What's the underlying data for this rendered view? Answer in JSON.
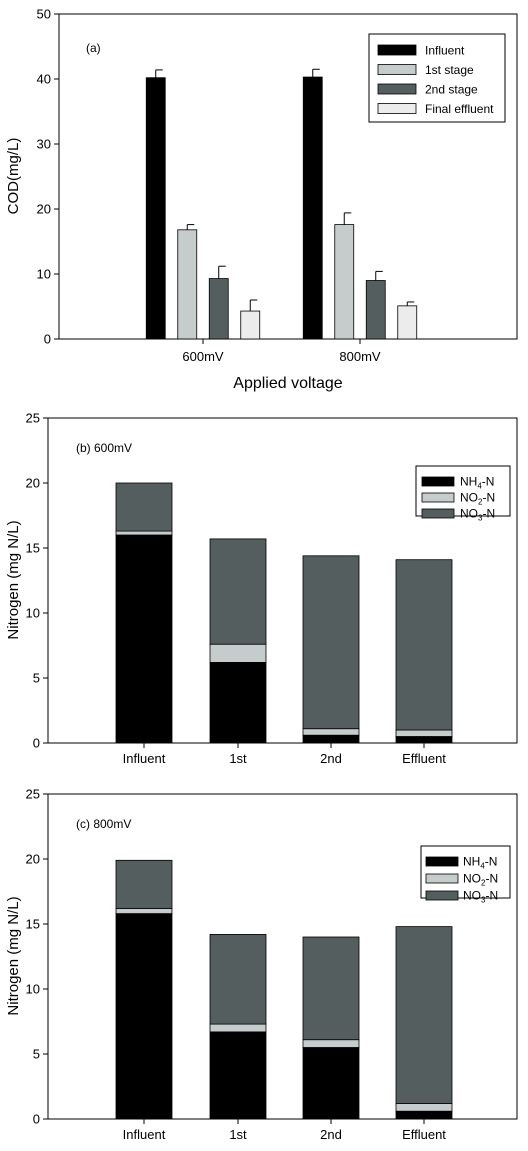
{
  "chart_data": [
    {
      "type": "bar",
      "panel_label": "(a)",
      "xlabel": "Applied voltage",
      "ylabel": "COD(mg/L)",
      "ylim": [
        0,
        50
      ],
      "yticks": [
        0,
        10,
        20,
        30,
        40,
        50
      ],
      "categories": [
        "600mV",
        "800mV"
      ],
      "legend_position": "top-right",
      "series": [
        {
          "name": "Influent",
          "color": "#000000",
          "values": [
            40.2,
            40.3
          ],
          "errors": [
            1.2,
            1.2
          ]
        },
        {
          "name": "1st stage",
          "color": "#c6cbcb",
          "values": [
            16.8,
            17.6
          ],
          "errors": [
            0.8,
            1.8
          ]
        },
        {
          "name": "2nd stage",
          "color": "#555e5e",
          "values": [
            9.3,
            9.0
          ],
          "errors": [
            1.9,
            1.4
          ]
        },
        {
          "name": "Final effluent",
          "color": "#ececec",
          "values": [
            4.3,
            5.1
          ],
          "errors": [
            1.7,
            0.6
          ]
        }
      ]
    },
    {
      "type": "bar",
      "stacked": true,
      "panel_label": "(b) 600mV",
      "xlabel": "",
      "ylabel": "Nitrogen (mg N/L)",
      "ylim": [
        0,
        25
      ],
      "yticks": [
        0,
        5,
        10,
        15,
        20,
        25
      ],
      "categories": [
        "Influent",
        "1st",
        "2nd",
        "Effluent"
      ],
      "legend_position": "top-right",
      "series": [
        {
          "name": "NH4-N",
          "label_main": "NH",
          "label_sub": "4",
          "label_tail": "-N",
          "color": "#000000",
          "values": [
            16.0,
            6.2,
            0.6,
            0.5
          ]
        },
        {
          "name": "NO2-N",
          "label_main": "NO",
          "label_sub": "2",
          "label_tail": "-N",
          "color": "#c6cbcb",
          "values": [
            0.3,
            1.4,
            0.5,
            0.5
          ]
        },
        {
          "name": "NO3-N",
          "label_main": "NO",
          "label_sub": "3",
          "label_tail": "-N",
          "color": "#555e5e",
          "values": [
            3.7,
            8.1,
            13.3,
            13.1
          ]
        }
      ]
    },
    {
      "type": "bar",
      "stacked": true,
      "panel_label": "(c) 800mV",
      "xlabel": "",
      "ylabel": "Nitrogen (mg N/L)",
      "ylim": [
        0,
        25
      ],
      "yticks": [
        0,
        5,
        10,
        15,
        20,
        25
      ],
      "categories": [
        "Influent",
        "1st",
        "2nd",
        "Effluent"
      ],
      "legend_position": "top-right",
      "series": [
        {
          "name": "NH4-N",
          "label_main": "NH",
          "label_sub": "4",
          "label_tail": "-N",
          "color": "#000000",
          "values": [
            15.8,
            6.7,
            5.5,
            0.6
          ]
        },
        {
          "name": "NO2-N",
          "label_main": "NO",
          "label_sub": "2",
          "label_tail": "-N",
          "color": "#c6cbcb",
          "values": [
            0.4,
            0.6,
            0.6,
            0.6
          ]
        },
        {
          "name": "NO3-N",
          "label_main": "NO",
          "label_sub": "3",
          "label_tail": "-N",
          "color": "#555e5e",
          "values": [
            3.7,
            6.9,
            7.9,
            13.6
          ]
        }
      ]
    }
  ]
}
